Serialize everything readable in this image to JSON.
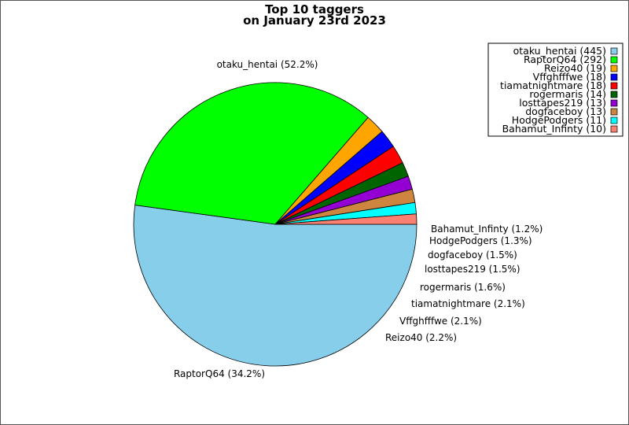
{
  "chart_data": {
    "type": "pie",
    "title": "Top 10 taggers",
    "subtitle": "on January 23rd 2023",
    "legend_position": "top-right",
    "start_angle_deg": 0,
    "direction": "clockwise",
    "slices": [
      {
        "name": "otaku_hentai",
        "value": 445,
        "percent_label": "52.2%",
        "legend_label": "otaku_hentai (445)",
        "slice_label": "otaku_hentai (52.2%)",
        "color": "#87ceeb"
      },
      {
        "name": "RaptorQ64",
        "value": 292,
        "percent_label": "34.2%",
        "legend_label": "RaptorQ64 (292)",
        "slice_label": "RaptorQ64 (34.2%)",
        "color": "#00ff00"
      },
      {
        "name": "Reizo40",
        "value": 19,
        "percent_label": "2.2%",
        "legend_label": "Reizo40 (19)",
        "slice_label": "Reizo40 (2.2%)",
        "color": "#ffa500"
      },
      {
        "name": "Vffghfffwe",
        "value": 18,
        "percent_label": "2.1%",
        "legend_label": "Vffghfffwe (18)",
        "slice_label": "Vffghfffwe (2.1%)",
        "color": "#0000ff"
      },
      {
        "name": "tiamatnightmare",
        "value": 18,
        "percent_label": "2.1%",
        "legend_label": "tiamatnightmare (18)",
        "slice_label": "tiamatnightmare (2.1%)",
        "color": "#ff0000"
      },
      {
        "name": "rogermaris",
        "value": 14,
        "percent_label": "1.6%",
        "legend_label": "rogermaris (14)",
        "slice_label": "rogermaris (1.6%)",
        "color": "#006400"
      },
      {
        "name": "losttapes219",
        "value": 13,
        "percent_label": "1.5%",
        "legend_label": "losttapes219 (13)",
        "slice_label": "losttapes219 (1.5%)",
        "color": "#9400d3"
      },
      {
        "name": "dogfaceboy",
        "value": 13,
        "percent_label": "1.5%",
        "legend_label": "dogfaceboy (13)",
        "slice_label": "dogfaceboy (1.5%)",
        "color": "#cd853f"
      },
      {
        "name": "HodgePodgers",
        "value": 11,
        "percent_label": "1.3%",
        "legend_label": "HodgePodgers (11)",
        "slice_label": "HodgePodgers (1.3%)",
        "color": "#00ffff"
      },
      {
        "name": "Bahamut_Infinty",
        "value": 10,
        "percent_label": "1.2%",
        "legend_label": "Bahamut_Infinty (10)",
        "slice_label": "Bahamut_Infinty (1.2%)",
        "color": "#fa8072"
      }
    ]
  }
}
